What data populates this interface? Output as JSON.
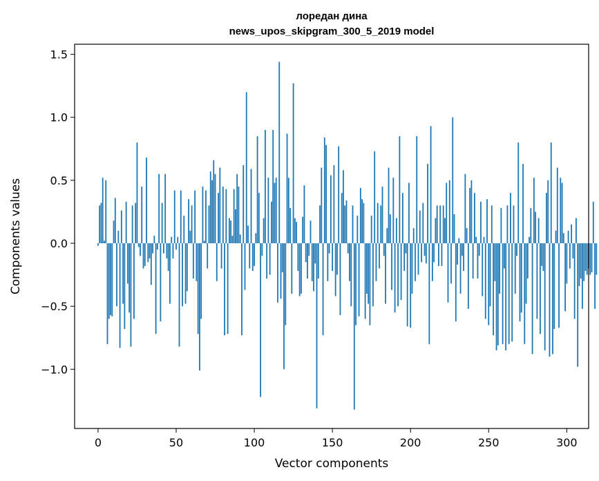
{
  "chart_data": {
    "type": "bar",
    "title": "лоредан дина",
    "subtitle": "news_upos_skipgram_300_5_2019 model",
    "xlabel": "Vector components",
    "ylabel": "Components values",
    "xlim": [
      -15,
      314
    ],
    "ylim": [
      -1.47,
      1.58
    ],
    "xticks": [
      0,
      50,
      100,
      150,
      200,
      250,
      300
    ],
    "xtick_labels": [
      "0",
      "50",
      "100",
      "150",
      "200",
      "250",
      "300"
    ],
    "yticks": [
      -1.0,
      -0.5,
      0.0,
      0.5,
      1.0,
      1.5
    ],
    "ytick_labels": [
      "−1.0",
      "−0.5",
      "0.0",
      "0.5",
      "1.0",
      "1.5"
    ],
    "bar_color": "#1f77b4",
    "grid": false,
    "legend": "none",
    "values": [
      -0.02,
      0.3,
      0.32,
      0.52,
      0.02,
      0.5,
      -0.8,
      -0.6,
      -0.57,
      -0.58,
      0.18,
      0.36,
      -0.5,
      0.1,
      -0.83,
      0.26,
      -0.48,
      -0.68,
      0.33,
      -0.32,
      -0.55,
      -0.82,
      0.3,
      -0.6,
      0.32,
      0.8,
      -0.03,
      -0.1,
      0.45,
      -0.2,
      -0.18,
      0.68,
      -0.15,
      -0.12,
      -0.33,
      -0.08,
      0.06,
      -0.72,
      -0.05,
      0.55,
      -0.62,
      0.32,
      -0.08,
      0.55,
      -0.12,
      -0.22,
      -0.48,
      0.05,
      -0.12,
      0.42,
      -0.05,
      0.05,
      -0.82,
      0.42,
      -0.5,
      0.22,
      -0.48,
      -0.38,
      0.35,
      0.1,
      0.3,
      -0.28,
      0.42,
      -0.3,
      -0.72,
      -1.01,
      -0.6,
      0.45,
      0.02,
      0.42,
      -0.2,
      0.3,
      0.57,
      0.5,
      0.66,
      0.55,
      -0.3,
      0.4,
      0.6,
      -0.2,
      0.45,
      -0.73,
      0.43,
      -0.72,
      0.2,
      0.18,
      0.06,
      0.43,
      0.27,
      0.55,
      0.45,
      0.07,
      -0.73,
      0.62,
      -0.37,
      1.2,
      0.14,
      -0.2,
      0.59,
      -0.22,
      -0.18,
      0.08,
      0.85,
      0.4,
      -1.22,
      -0.1,
      0.2,
      0.9,
      -0.28,
      0.52,
      -0.25,
      0.33,
      0.9,
      0.48,
      0.52,
      -0.47,
      1.44,
      -0.44,
      -0.23,
      -1.0,
      -0.65,
      0.87,
      0.52,
      0.28,
      -0.4,
      1.27,
      0.2,
      0.17,
      -0.22,
      -0.42,
      -0.4,
      0.21,
      0.46,
      -0.15,
      -0.28,
      -0.1,
      0.18,
      -0.3,
      -0.38,
      -0.16,
      -1.31,
      -0.28,
      0.3,
      0.6,
      -0.73,
      0.84,
      0.78,
      -0.3,
      -0.08,
      0.54,
      -0.22,
      0.62,
      -0.42,
      -0.25,
      0.77,
      -0.57,
      0.4,
      0.58,
      0.3,
      0.34,
      -0.08,
      -0.3,
      -0.5,
      0.3,
      -1.32,
      -0.65,
      0.22,
      -0.58,
      0.44,
      0.35,
      0.32,
      -0.6,
      -0.4,
      -0.48,
      -0.65,
      0.22,
      -0.5,
      0.73,
      -0.3,
      0.32,
      -0.2,
      0.3,
      0.45,
      -0.1,
      -0.48,
      0.12,
      0.6,
      0.23,
      -0.37,
      0.52,
      -0.55,
      0.2,
      -0.5,
      0.85,
      -0.45,
      0.4,
      -0.22,
      -0.08,
      -0.66,
      0.48,
      -0.67,
      -0.4,
      0.12,
      -0.3,
      0.85,
      -0.25,
      0.26,
      -0.15,
      0.32,
      -0.1,
      -0.16,
      0.63,
      -0.8,
      0.93,
      -0.3,
      -0.15,
      0.2,
      0.3,
      -0.18,
      0.3,
      -0.18,
      0.3,
      0.2,
      0.48,
      -0.47,
      0.5,
      -0.32,
      1.0,
      0.23,
      -0.62,
      -0.17,
      0.04,
      -0.4,
      -0.1,
      -0.22,
      0.55,
      0.12,
      -0.52,
      0.44,
      0.5,
      -0.28,
      0.4,
      0.05,
      -0.28,
      -0.1,
      0.33,
      -0.42,
      0.05,
      -0.6,
      0.35,
      -0.65,
      -0.5,
      0.3,
      -0.73,
      -0.3,
      -0.85,
      -0.81,
      -0.4,
      0.28,
      -0.8,
      -0.2,
      -0.85,
      0.3,
      -0.8,
      0.4,
      -0.78,
      0.3,
      -0.4,
      -0.1,
      0.8,
      -0.62,
      -0.55,
      0.63,
      -0.8,
      -0.48,
      -0.28,
      0.05,
      0.28,
      -0.88,
      0.52,
      0.25,
      -0.6,
      0.2,
      -0.72,
      -0.18,
      -0.22,
      -0.85,
      0.4,
      0.5,
      -0.9,
      0.8,
      -0.88,
      -0.68,
      0.1,
      0.6,
      -0.67,
      0.52,
      0.48,
      0.08,
      -0.54,
      -0.32,
      0.1,
      -0.2,
      0.15,
      -0.12,
      -0.6,
      0.2,
      -0.98,
      -0.34,
      -0.28,
      -0.52,
      -0.3,
      -0.22,
      -0.25,
      -0.2,
      -0.25,
      -0.23,
      0.33,
      -0.52,
      -0.25
    ]
  }
}
